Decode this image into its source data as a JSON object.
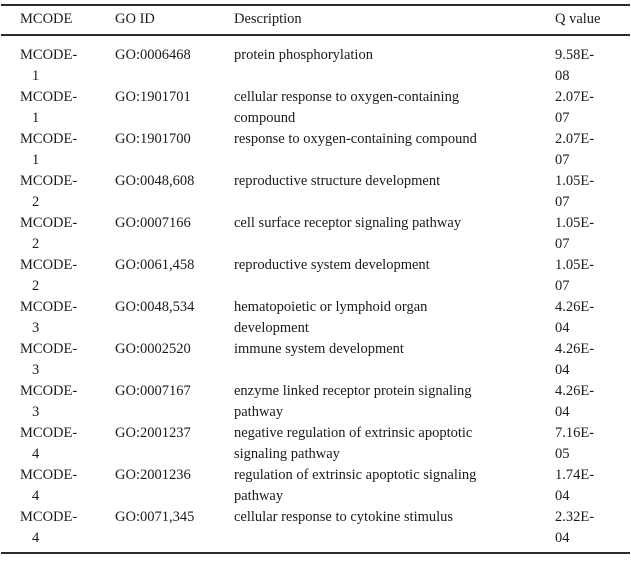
{
  "table": {
    "columns": [
      "MCODE",
      "GO ID",
      "Description",
      "Q value"
    ],
    "rows": [
      {
        "mcode_lines": [
          "MCODE-",
          "1"
        ],
        "go_id": "GO:0006468",
        "desc_lines": [
          "protein phosphorylation"
        ],
        "q_lines": [
          "9.58E-",
          "08"
        ]
      },
      {
        "mcode_lines": [
          "MCODE-",
          "1"
        ],
        "go_id": "GO:1901701",
        "desc_lines": [
          "cellular response to oxygen-containing",
          "compound"
        ],
        "q_lines": [
          "2.07E-",
          "07"
        ]
      },
      {
        "mcode_lines": [
          "MCODE-",
          "1"
        ],
        "go_id": "GO:1901700",
        "desc_lines": [
          "response to oxygen-containing compound"
        ],
        "q_lines": [
          "2.07E-",
          "07"
        ]
      },
      {
        "mcode_lines": [
          "MCODE-",
          "2"
        ],
        "go_id": "GO:0048,608",
        "desc_lines": [
          "reproductive structure development"
        ],
        "q_lines": [
          "1.05E-",
          "07"
        ]
      },
      {
        "mcode_lines": [
          "MCODE-",
          "2"
        ],
        "go_id": "GO:0007166",
        "desc_lines": [
          "cell surface receptor signaling pathway"
        ],
        "q_lines": [
          "1.05E-",
          "07"
        ]
      },
      {
        "mcode_lines": [
          "MCODE-",
          "2"
        ],
        "go_id": "GO:0061,458",
        "desc_lines": [
          "reproductive system development"
        ],
        "q_lines": [
          "1.05E-",
          "07"
        ]
      },
      {
        "mcode_lines": [
          "MCODE-",
          "3"
        ],
        "go_id": "GO:0048,534",
        "desc_lines": [
          "hematopoietic or lymphoid organ",
          "development"
        ],
        "q_lines": [
          "4.26E-",
          "04"
        ]
      },
      {
        "mcode_lines": [
          "MCODE-",
          "3"
        ],
        "go_id": "GO:0002520",
        "desc_lines": [
          "immune system development"
        ],
        "q_lines": [
          "4.26E-",
          "04"
        ]
      },
      {
        "mcode_lines": [
          "MCODE-",
          "3"
        ],
        "go_id": "GO:0007167",
        "desc_lines": [
          "enzyme linked receptor protein signaling",
          "pathway"
        ],
        "q_lines": [
          "4.26E-",
          "04"
        ]
      },
      {
        "mcode_lines": [
          "MCODE-",
          "4"
        ],
        "go_id": "GO:2001237",
        "desc_lines": [
          "negative regulation of extrinsic apoptotic",
          "signaling pathway"
        ],
        "q_lines": [
          "7.16E-",
          "05"
        ]
      },
      {
        "mcode_lines": [
          "MCODE-",
          "4"
        ],
        "go_id": "GO:2001236",
        "desc_lines": [
          "regulation of extrinsic apoptotic signaling",
          "pathway"
        ],
        "q_lines": [
          "1.74E-",
          "04"
        ]
      },
      {
        "mcode_lines": [
          "MCODE-",
          "4"
        ],
        "go_id": "GO:0071,345",
        "desc_lines": [
          "cellular response to cytokine stimulus"
        ],
        "q_lines": [
          "2.32E-",
          "04"
        ]
      }
    ],
    "colors": {
      "text": "#1b1b1b",
      "rule": "#2a2a2a",
      "background": "#ffffff"
    }
  }
}
